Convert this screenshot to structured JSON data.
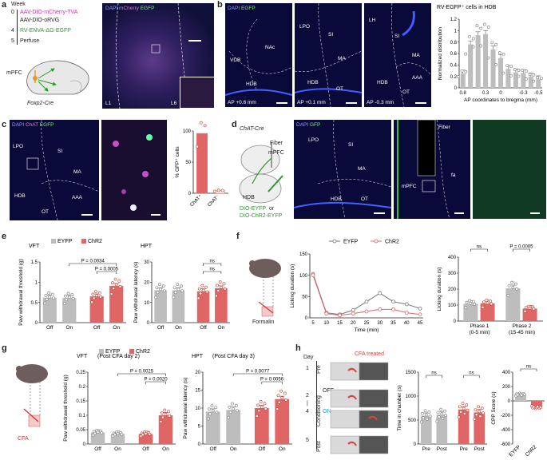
{
  "panels": {
    "a": "a",
    "b": "b",
    "c": "c",
    "d": "d",
    "e": "e",
    "f": "f",
    "g": "g",
    "h": "h"
  },
  "a": {
    "week_label": "Week",
    "steps": [
      {
        "week": "0",
        "text": "AAV-DIO-mCherry-TVA"
      },
      {
        "week": "",
        "text": "AAV-DIO-oRVG"
      },
      {
        "week": "4",
        "text": "RV-ENVA-ΔG-EGFP"
      },
      {
        "week": "5",
        "text": "Perfuse"
      }
    ],
    "mpfc": "mPFC",
    "mouse": "Foxp2-Cre",
    "micro_title_dapi": "DAPI",
    "micro_title_mcherry": "mCherry",
    "micro_title_egfp": "EGFP",
    "layer_l1": "L1",
    "layer_l6": "L6"
  },
  "b": {
    "dapi": "DAPI",
    "egfp": "EGFP",
    "img1": {
      "regions": [
        "NAc",
        "VDB",
        "HDB"
      ],
      "ap": "AP +0.6 mm"
    },
    "img2": {
      "regions": [
        "LPO",
        "SI",
        "MA",
        "HDB",
        "OT"
      ],
      "ap": "AP +0.1 mm"
    },
    "img3": {
      "regions": [
        "LH",
        "SI",
        "MA",
        "HDB",
        "AAA",
        "OT"
      ],
      "ap": "AP -0.3 mm"
    }
  },
  "c": {
    "dapi": "DAPI",
    "chat": "ChAT",
    "egfp": "EGFP",
    "regions": [
      "LPO",
      "SI",
      "MA",
      "AAA",
      "HDB",
      "OT"
    ]
  },
  "d": {
    "mouse": "ChAT-Cre",
    "fiber": "Fiber",
    "mpfc": "mPFC",
    "hdb": "HDB",
    "virus1": "DIO-EYFP",
    "or": "or",
    "virus2": "DIO-ChR2-EYFP",
    "dapi": "DAPI",
    "gfp": "GFP",
    "img1_regions": [
      "LPO",
      "SI",
      "MA",
      "HDB",
      "OT"
    ],
    "img2_labels": [
      "Fiber",
      "mPFC",
      "fa"
    ]
  },
  "f": {
    "formalin": "Formalin"
  },
  "g": {
    "cfa": "CFA"
  },
  "h": {
    "day": "Day",
    "days": [
      "1",
      "2",
      "|",
      "4",
      "5"
    ],
    "stages": [
      "Pre",
      "Conditioning",
      "Post"
    ],
    "off": "OFF",
    "on": "ON",
    "cfa_treated": "CFA treated"
  },
  "chart_data": [
    {
      "id": "b-chart",
      "type": "bar",
      "title": "RV-EGFP⁺ cells in HDB",
      "xlabel": "AP coordinates to bregma (mm)",
      "ylabel": "Normalized distribution",
      "categories": [
        "0.8",
        "0.6",
        "0.4",
        "0.3",
        "0.2",
        "0",
        "-0.1",
        "-0.2",
        "-0.3",
        "-0.4",
        "-0.5"
      ],
      "xtick_labels": [
        "0.8",
        "0.3",
        "0",
        "-0.3",
        "-0.5"
      ],
      "values": [
        0.25,
        0.76,
        0.92,
        0.94,
        0.67,
        0.52,
        0.33,
        0.27,
        0.26,
        0.2,
        0.15
      ],
      "ylim": [
        0,
        1.2
      ],
      "yticks": [
        0,
        0.2,
        0.4,
        0.6,
        0.8,
        1.0,
        1.2
      ]
    },
    {
      "id": "c-chart",
      "type": "bar",
      "ylabel": "% GFP⁺ cells",
      "categories": [
        "ChAT⁺",
        "ChAT⁻"
      ],
      "values": [
        96,
        4
      ],
      "ylim": [
        0,
        100
      ],
      "yticks": [
        0,
        50,
        100
      ]
    },
    {
      "id": "e-vft",
      "type": "bar",
      "title": "VFT",
      "ylabel": "Paw withdrawal threshold (g)",
      "legend": [
        "EYFP",
        "ChR2"
      ],
      "categories": [
        "Off",
        "On",
        "Off",
        "On"
      ],
      "values": [
        0.62,
        0.61,
        0.65,
        0.91
      ],
      "ylim": [
        0,
        1.5
      ],
      "yticks": [
        0.0,
        0.5,
        1.0,
        1.5
      ],
      "annotations": [
        "P = 0.0034",
        "P = 0.0005"
      ]
    },
    {
      "id": "e-hpt",
      "type": "bar",
      "title": "HPT",
      "ylabel": "Paw withdrawal latency (s)",
      "categories": [
        "Off",
        "On",
        "Off",
        "On"
      ],
      "values": [
        16,
        16,
        15.5,
        17
      ],
      "ylim": [
        0,
        30
      ],
      "yticks": [
        0,
        10,
        20,
        30
      ],
      "annotations": [
        "ns",
        "ns"
      ]
    },
    {
      "id": "f-time",
      "type": "line",
      "xlabel": "Time (min)",
      "ylabel": "Licking duration (s)",
      "x": [
        5,
        10,
        15,
        20,
        25,
        30,
        35,
        40,
        45
      ],
      "series": [
        {
          "name": "EYFP",
          "values": [
            103,
            12,
            8,
            18,
            38,
            58,
            38,
            32,
            22
          ]
        },
        {
          "name": "ChR2",
          "values": [
            100,
            10,
            6,
            10,
            15,
            20,
            20,
            12,
            8
          ]
        }
      ],
      "ylim": [
        0,
        150
      ],
      "yticks": [
        0,
        50,
        100,
        150
      ]
    },
    {
      "id": "f-phase",
      "type": "bar",
      "ylabel": "Licking duration (s)",
      "categories": [
        "Phase 1",
        "Phase 2"
      ],
      "sublabels": [
        "(0-5 min)",
        "(15-45 min)"
      ],
      "series": [
        {
          "name": "EYFP",
          "values": [
            108,
            205
          ]
        },
        {
          "name": "ChR2",
          "values": [
            110,
            78
          ]
        }
      ],
      "ylim": [
        0,
        400
      ],
      "yticks": [
        0,
        100,
        200,
        300,
        400
      ],
      "annotations": [
        "ns",
        "P = 0.0005"
      ]
    },
    {
      "id": "g-vft",
      "type": "bar",
      "title": "VFT",
      "subtitle": "(Post CFA day 2)",
      "ylabel": "Paw withdrawal threshold (g)",
      "legend": [
        "EYFP",
        "ChR2"
      ],
      "categories": [
        "Off",
        "On",
        "Off",
        "On"
      ],
      "values": [
        0.04,
        0.035,
        0.035,
        0.1
      ],
      "ylim": [
        0,
        0.25
      ],
      "yticks": [
        0.0,
        0.05,
        0.1,
        0.15,
        0.2,
        0.25
      ],
      "annotations": [
        "P = 0.0025",
        "P = 0.0020"
      ]
    },
    {
      "id": "g-hpt",
      "type": "bar",
      "title": "HPT",
      "subtitle": "(Post CFA day 3)",
      "ylabel": "Paw withdrawal latency (s)",
      "categories": [
        "Off",
        "On",
        "Off",
        "On"
      ],
      "values": [
        9,
        9.5,
        10,
        12.5
      ],
      "ylim": [
        0,
        20
      ],
      "yticks": [
        0,
        5,
        10,
        15,
        20
      ],
      "annotations": [
        "P = 0.0077",
        "P = 0.0056"
      ]
    },
    {
      "id": "h-time",
      "type": "bar",
      "ylabel": "Time in chamber (s)",
      "categories": [
        "Pre",
        "Post",
        "Pre",
        "Post"
      ],
      "values": [
        590,
        610,
        720,
        660
      ],
      "ylim": [
        0,
        1500
      ],
      "yticks": [
        0,
        500,
        1000,
        1500
      ],
      "annotations": [
        "ns",
        "ns"
      ]
    },
    {
      "id": "h-cpp",
      "type": "bar",
      "ylabel": "CPP Score (s)",
      "categories": [
        "EYFP",
        "ChR2"
      ],
      "values": [
        90,
        -90
      ],
      "ylim": [
        -600,
        400
      ],
      "yticks": [
        -600,
        -400,
        -200,
        0,
        200,
        400
      ],
      "annotations": [
        "ns"
      ]
    }
  ]
}
